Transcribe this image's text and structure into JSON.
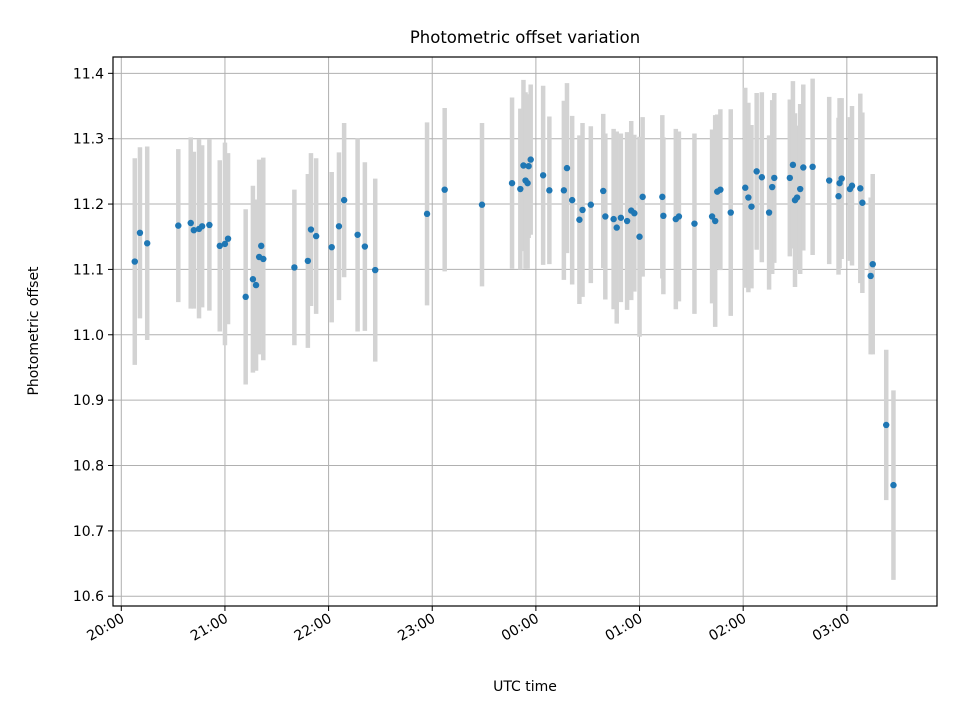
{
  "chart_data": {
    "type": "scatter",
    "title": "Photometric offset variation",
    "xlabel": "UTC time",
    "ylabel": "Photometric offset",
    "x_unit": "hours (UTC, continuing past midnight as 24+)",
    "xlim": [
      19.92,
      27.87
    ],
    "ylim": [
      10.585,
      11.425
    ],
    "grid": true,
    "x_ticks": [
      20,
      21,
      22,
      23,
      24,
      25,
      26,
      27
    ],
    "x_tick_labels": [
      "20:00",
      "21:00",
      "22:00",
      "23:00",
      "00:00",
      "01:00",
      "02:00",
      "03:00"
    ],
    "y_ticks": [
      10.6,
      10.7,
      10.8,
      10.9,
      11.0,
      11.1,
      11.2,
      11.3,
      11.4
    ],
    "y_tick_labels": [
      "10.6",
      "10.7",
      "10.8",
      "10.9",
      "11.0",
      "11.1",
      "11.2",
      "11.3",
      "11.4"
    ],
    "colors": {
      "point": "#1f77b4",
      "errorbar": "#d3d3d3"
    },
    "points": [
      {
        "x": 20.13,
        "y": 11.112,
        "err": 0.158
      },
      {
        "x": 20.18,
        "y": 11.156,
        "err": 0.131
      },
      {
        "x": 20.25,
        "y": 11.14,
        "err": 0.148
      },
      {
        "x": 20.55,
        "y": 11.167,
        "err": 0.117
      },
      {
        "x": 20.67,
        "y": 11.171,
        "err": 0.131
      },
      {
        "x": 20.7,
        "y": 11.16,
        "err": 0.12
      },
      {
        "x": 20.75,
        "y": 11.162,
        "err": 0.137
      },
      {
        "x": 20.78,
        "y": 11.166,
        "err": 0.124
      },
      {
        "x": 20.85,
        "y": 11.168,
        "err": 0.131
      },
      {
        "x": 20.95,
        "y": 11.136,
        "err": 0.131
      },
      {
        "x": 21.0,
        "y": 11.139,
        "err": 0.155
      },
      {
        "x": 21.03,
        "y": 11.147,
        "err": 0.131
      },
      {
        "x": 21.2,
        "y": 11.058,
        "err": 0.134
      },
      {
        "x": 21.27,
        "y": 11.085,
        "err": 0.143
      },
      {
        "x": 21.3,
        "y": 11.076,
        "err": 0.131
      },
      {
        "x": 21.33,
        "y": 11.119,
        "err": 0.149
      },
      {
        "x": 21.35,
        "y": 11.136,
        "err": 0.131
      },
      {
        "x": 21.37,
        "y": 11.116,
        "err": 0.155
      },
      {
        "x": 21.67,
        "y": 11.103,
        "err": 0.119
      },
      {
        "x": 21.8,
        "y": 11.113,
        "err": 0.133
      },
      {
        "x": 21.83,
        "y": 11.161,
        "err": 0.117
      },
      {
        "x": 21.88,
        "y": 11.151,
        "err": 0.119
      },
      {
        "x": 22.03,
        "y": 11.134,
        "err": 0.115
      },
      {
        "x": 22.1,
        "y": 11.166,
        "err": 0.113
      },
      {
        "x": 22.15,
        "y": 11.206,
        "err": 0.118
      },
      {
        "x": 22.28,
        "y": 11.153,
        "err": 0.148
      },
      {
        "x": 22.35,
        "y": 11.135,
        "err": 0.129
      },
      {
        "x": 22.45,
        "y": 11.099,
        "err": 0.14
      },
      {
        "x": 22.95,
        "y": 11.185,
        "err": 0.14
      },
      {
        "x": 23.12,
        "y": 11.222,
        "err": 0.125
      },
      {
        "x": 23.48,
        "y": 11.199,
        "err": 0.125
      },
      {
        "x": 23.77,
        "y": 11.232,
        "err": 0.131
      },
      {
        "x": 23.85,
        "y": 11.223,
        "err": 0.123
      },
      {
        "x": 23.88,
        "y": 11.259,
        "err": 0.131
      },
      {
        "x": 23.9,
        "y": 11.236,
        "err": 0.135
      },
      {
        "x": 23.92,
        "y": 11.232,
        "err": 0.131
      },
      {
        "x": 23.93,
        "y": 11.258,
        "err": 0.11
      },
      {
        "x": 23.95,
        "y": 11.268,
        "err": 0.115
      },
      {
        "x": 24.07,
        "y": 11.244,
        "err": 0.137
      },
      {
        "x": 24.13,
        "y": 11.221,
        "err": 0.113
      },
      {
        "x": 24.27,
        "y": 11.221,
        "err": 0.137
      },
      {
        "x": 24.3,
        "y": 11.255,
        "err": 0.13
      },
      {
        "x": 24.35,
        "y": 11.206,
        "err": 0.129
      },
      {
        "x": 24.42,
        "y": 11.176,
        "err": 0.129
      },
      {
        "x": 24.45,
        "y": 11.191,
        "err": 0.133
      },
      {
        "x": 24.53,
        "y": 11.199,
        "err": 0.12
      },
      {
        "x": 24.65,
        "y": 11.22,
        "err": 0.118
      },
      {
        "x": 24.67,
        "y": 11.181,
        "err": 0.127
      },
      {
        "x": 24.75,
        "y": 11.177,
        "err": 0.138
      },
      {
        "x": 24.78,
        "y": 11.164,
        "err": 0.147
      },
      {
        "x": 24.82,
        "y": 11.179,
        "err": 0.129
      },
      {
        "x": 24.88,
        "y": 11.174,
        "err": 0.136
      },
      {
        "x": 24.92,
        "y": 11.19,
        "err": 0.137
      },
      {
        "x": 24.95,
        "y": 11.186,
        "err": 0.12
      },
      {
        "x": 25.0,
        "y": 11.15,
        "err": 0.153
      },
      {
        "x": 25.03,
        "y": 11.211,
        "err": 0.122
      },
      {
        "x": 25.22,
        "y": 11.211,
        "err": 0.125
      },
      {
        "x": 25.23,
        "y": 11.182,
        "err": 0.12
      },
      {
        "x": 25.35,
        "y": 11.177,
        "err": 0.138
      },
      {
        "x": 25.38,
        "y": 11.181,
        "err": 0.13
      },
      {
        "x": 25.53,
        "y": 11.17,
        "err": 0.138
      },
      {
        "x": 25.7,
        "y": 11.181,
        "err": 0.133
      },
      {
        "x": 25.73,
        "y": 11.174,
        "err": 0.162
      },
      {
        "x": 25.75,
        "y": 11.219,
        "err": 0.118
      },
      {
        "x": 25.78,
        "y": 11.222,
        "err": 0.123
      },
      {
        "x": 25.88,
        "y": 11.187,
        "err": 0.158
      },
      {
        "x": 26.02,
        "y": 11.225,
        "err": 0.153
      },
      {
        "x": 26.05,
        "y": 11.21,
        "err": 0.145
      },
      {
        "x": 26.08,
        "y": 11.196,
        "err": 0.125
      },
      {
        "x": 26.13,
        "y": 11.25,
        "err": 0.12
      },
      {
        "x": 26.18,
        "y": 11.241,
        "err": 0.13
      },
      {
        "x": 26.25,
        "y": 11.187,
        "err": 0.118
      },
      {
        "x": 26.28,
        "y": 11.226,
        "err": 0.133
      },
      {
        "x": 26.3,
        "y": 11.24,
        "err": 0.13
      },
      {
        "x": 26.45,
        "y": 11.24,
        "err": 0.12
      },
      {
        "x": 26.48,
        "y": 11.26,
        "err": 0.128
      },
      {
        "x": 26.5,
        "y": 11.206,
        "err": 0.133
      },
      {
        "x": 26.52,
        "y": 11.21,
        "err": 0.11
      },
      {
        "x": 26.55,
        "y": 11.223,
        "err": 0.13
      },
      {
        "x": 26.58,
        "y": 11.256,
        "err": 0.127
      },
      {
        "x": 26.67,
        "y": 11.257,
        "err": 0.135
      },
      {
        "x": 26.83,
        "y": 11.236,
        "err": 0.128
      },
      {
        "x": 26.92,
        "y": 11.212,
        "err": 0.12
      },
      {
        "x": 26.93,
        "y": 11.232,
        "err": 0.13
      },
      {
        "x": 26.95,
        "y": 11.239,
        "err": 0.123
      },
      {
        "x": 27.03,
        "y": 11.223,
        "err": 0.11
      },
      {
        "x": 27.05,
        "y": 11.228,
        "err": 0.122
      },
      {
        "x": 27.13,
        "y": 11.224,
        "err": 0.145
      },
      {
        "x": 27.15,
        "y": 11.202,
        "err": 0.138
      },
      {
        "x": 27.23,
        "y": 11.09,
        "err": 0.12
      },
      {
        "x": 27.25,
        "y": 11.108,
        "err": 0.138
      },
      {
        "x": 27.38,
        "y": 10.862,
        "err": 0.115
      },
      {
        "x": 27.45,
        "y": 10.77,
        "err": 0.145
      }
    ]
  }
}
